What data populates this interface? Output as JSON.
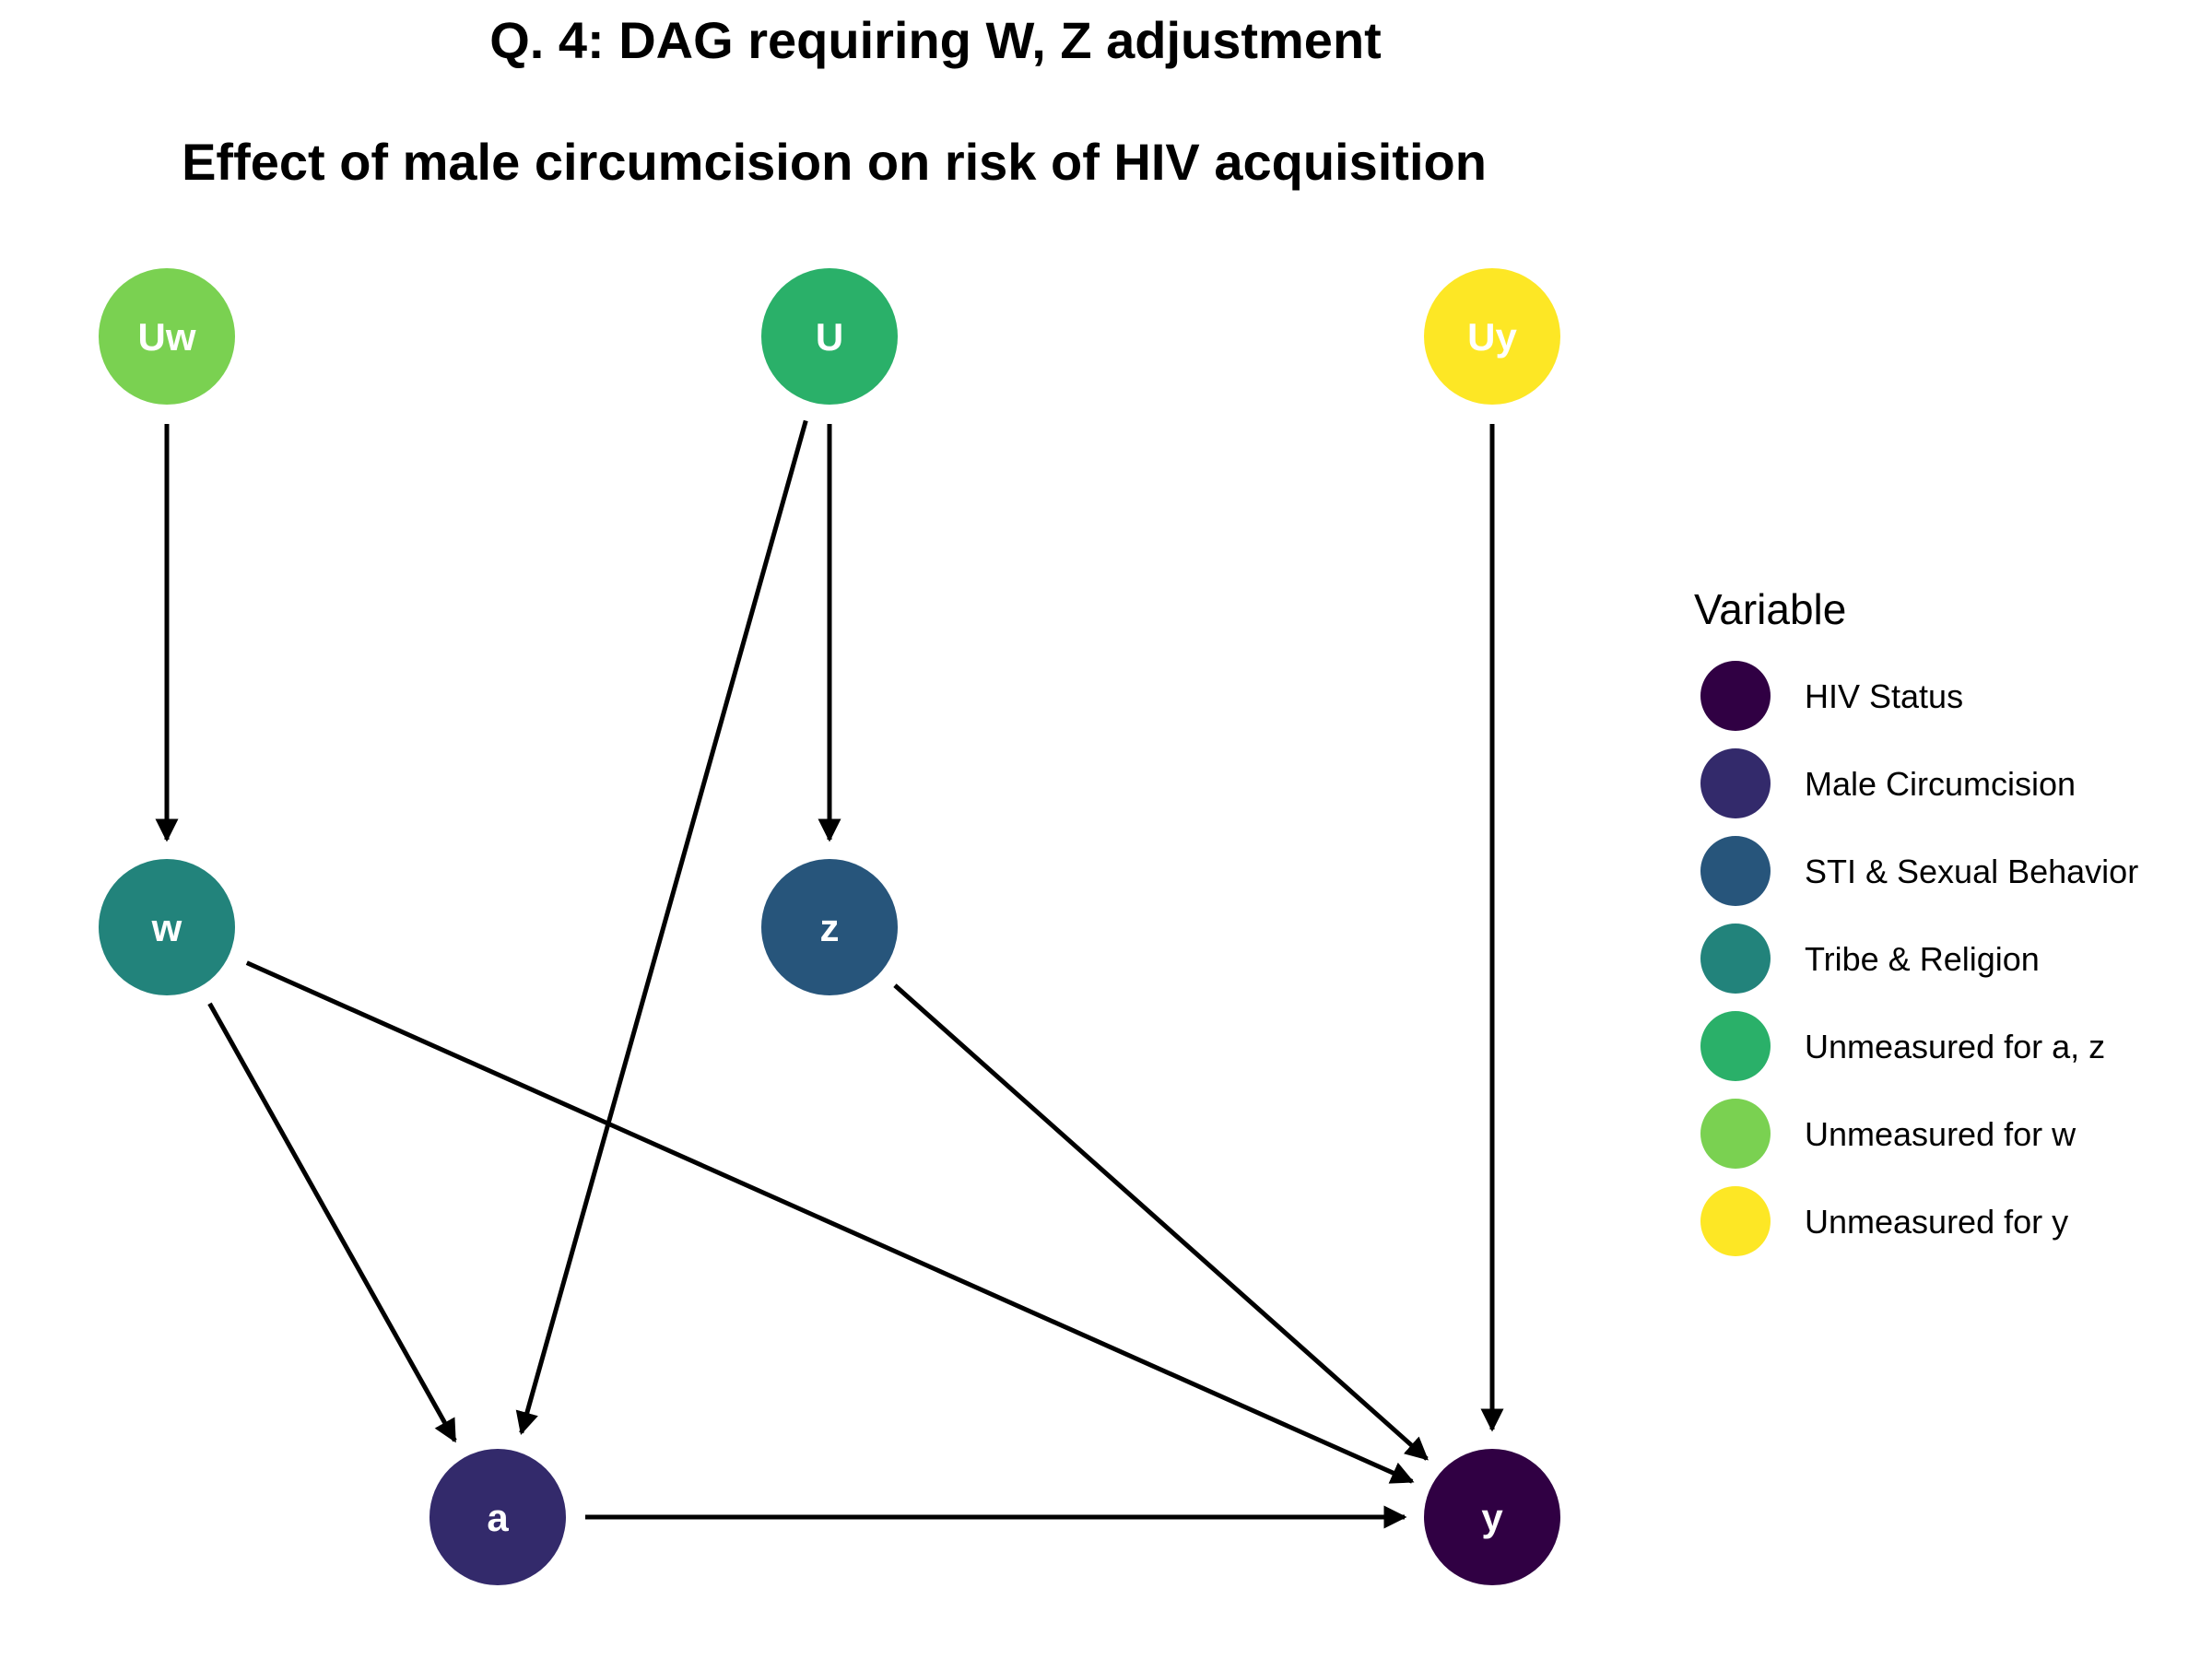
{
  "title": "Q. 4: DAG requiring W, Z adjustment",
  "subtitle": "Effect of male circumcision on risk of HIV acquisition",
  "nodes": [
    {
      "id": "Uw",
      "label": "Uw",
      "color": "#7AD151",
      "group": "Unmeasured for w"
    },
    {
      "id": "U",
      "label": "U",
      "color": "#2AB069",
      "group": "Unmeasured for a, z"
    },
    {
      "id": "Uy",
      "label": "Uy",
      "color": "#FDE725",
      "group": "Unmeasured for y"
    },
    {
      "id": "w",
      "label": "w",
      "color": "#22837B",
      "group": "Tribe & Religion"
    },
    {
      "id": "z",
      "label": "z",
      "color": "#27557B",
      "group": "STI & Sexual Behavior"
    },
    {
      "id": "a",
      "label": "a",
      "color": "#332A6B",
      "group": "Male Circumcision"
    },
    {
      "id": "y",
      "label": "y",
      "color": "#300043",
      "group": "HIV Status"
    }
  ],
  "edges": [
    {
      "from": "Uw",
      "to": "w"
    },
    {
      "from": "U",
      "to": "z"
    },
    {
      "from": "U",
      "to": "a"
    },
    {
      "from": "Uy",
      "to": "y"
    },
    {
      "from": "w",
      "to": "a"
    },
    {
      "from": "w",
      "to": "y"
    },
    {
      "from": "z",
      "to": "y"
    },
    {
      "from": "a",
      "to": "y"
    }
  ],
  "legend": {
    "title": "Variable",
    "items": [
      {
        "label": "HIV Status",
        "color": "#300043"
      },
      {
        "label": "Male Circumcision",
        "color": "#332A6B"
      },
      {
        "label": "STI & Sexual Behavior",
        "color": "#27557B"
      },
      {
        "label": "Tribe & Religion",
        "color": "#22837B"
      },
      {
        "label": "Unmeasured for a, z",
        "color": "#2AB069"
      },
      {
        "label": "Unmeasured for w",
        "color": "#7AD151"
      },
      {
        "label": "Unmeasured for y",
        "color": "#FDE725"
      }
    ]
  }
}
